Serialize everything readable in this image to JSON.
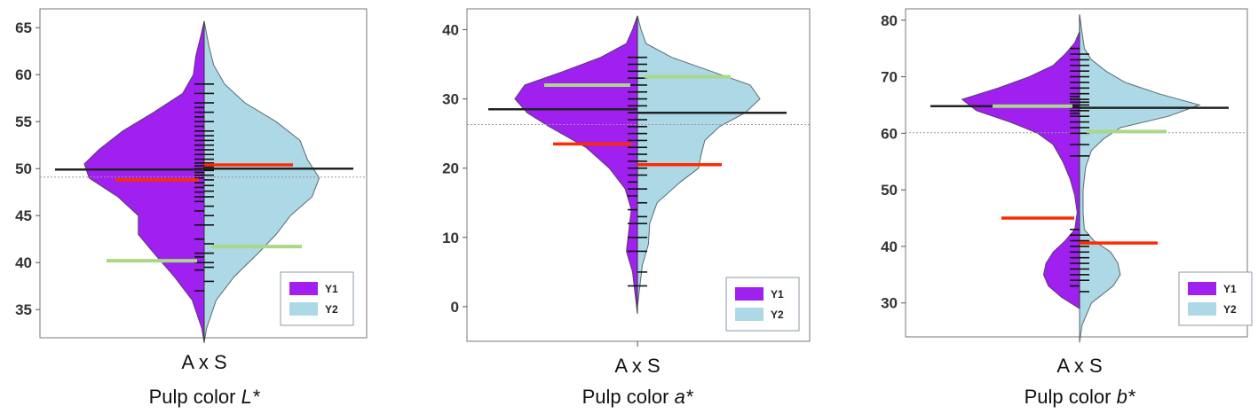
{
  "colors": {
    "y1": "#a020f0",
    "y2": "#add8e6",
    "overall_mean": "#222222",
    "red_mean": "#ff2a00",
    "green_mean": "#a8d888",
    "grand_mean": "#999999"
  },
  "chart_data": [
    {
      "type": "bean",
      "category": "A x S",
      "xlabel_prefix": "Pulp color ",
      "xlabel_var": "L*",
      "yticks": [
        35,
        40,
        45,
        50,
        55,
        60,
        65
      ],
      "ylim": [
        32,
        67
      ],
      "legend": [
        "Y1",
        "Y2"
      ],
      "legend_position": "bottom-right",
      "overall_line": {
        "y1": 49.9,
        "y2": 50.0
      },
      "grand_mean": 49.1,
      "red_lines": {
        "y1": 48.8,
        "y2": 50.4
      },
      "green_lines": {
        "y1": 40.2,
        "y2": 41.7
      },
      "density_y1": [
        [
          31.5,
          0
        ],
        [
          33,
          0.02
        ],
        [
          36,
          0.1
        ],
        [
          38.5,
          0.25
        ],
        [
          41,
          0.42
        ],
        [
          43,
          0.55
        ],
        [
          45,
          0.55
        ],
        [
          47,
          0.72
        ],
        [
          49,
          0.96
        ],
        [
          50.5,
          1.0
        ],
        [
          52,
          0.88
        ],
        [
          54,
          0.68
        ],
        [
          56,
          0.42
        ],
        [
          58,
          0.18
        ],
        [
          60,
          0.09
        ],
        [
          62,
          0.07
        ],
        [
          64,
          0.03
        ],
        [
          65.7,
          0
        ]
      ],
      "density_y2": [
        [
          31.5,
          0
        ],
        [
          33,
          0.02
        ],
        [
          36,
          0.1
        ],
        [
          38.5,
          0.25
        ],
        [
          41,
          0.45
        ],
        [
          43,
          0.6
        ],
        [
          45,
          0.72
        ],
        [
          47,
          0.9
        ],
        [
          49,
          0.96
        ],
        [
          51,
          0.86
        ],
        [
          53,
          0.8
        ],
        [
          55,
          0.6
        ],
        [
          57,
          0.34
        ],
        [
          59,
          0.17
        ],
        [
          61,
          0.08
        ],
        [
          63,
          0.04
        ],
        [
          65.7,
          0
        ]
      ],
      "obs_y1": [
        37,
        39.2,
        40,
        40.6,
        41,
        42.5,
        44,
        45.5,
        46.5,
        47,
        47.5,
        48,
        48.5,
        49,
        49.3,
        49.6,
        50,
        50.3,
        50.6,
        51,
        51.5,
        52,
        52.5,
        53,
        53.5,
        54,
        54.5,
        55,
        55.5,
        56,
        56.5,
        57,
        58,
        59
      ],
      "obs_y2": [
        38,
        39.5,
        40,
        41,
        42,
        44,
        45,
        46,
        47,
        47.6,
        48.2,
        48.8,
        49.3,
        49.8,
        50.2,
        50.6,
        51,
        51.5,
        52,
        52.5,
        53,
        53.5,
        54,
        55,
        56,
        57,
        58,
        59
      ]
    },
    {
      "type": "bean",
      "category": "A x S",
      "xlabel_prefix": "Pulp color ",
      "xlabel_var": "a*",
      "yticks": [
        0,
        10,
        20,
        30,
        40
      ],
      "ylim": [
        -5,
        43
      ],
      "legend": [
        "Y1",
        "Y2"
      ],
      "legend_position": "bottom-right",
      "overall_line": {
        "y1": 28.5,
        "y2": 28.0
      },
      "grand_mean": 26.3,
      "red_lines": {
        "y1": 23.5,
        "y2": 20.5
      },
      "green_lines": {
        "y1": 32.0,
        "y2": 33.2
      },
      "density_y1": [
        [
          -1,
          0
        ],
        [
          2,
          0.02
        ],
        [
          5,
          0.04
        ],
        [
          8,
          0.09
        ],
        [
          11,
          0.07
        ],
        [
          14,
          0.05
        ],
        [
          17,
          0.1
        ],
        [
          20,
          0.23
        ],
        [
          23,
          0.42
        ],
        [
          26,
          0.72
        ],
        [
          28,
          0.9
        ],
        [
          30,
          1.0
        ],
        [
          32,
          0.92
        ],
        [
          34,
          0.6
        ],
        [
          36,
          0.3
        ],
        [
          38,
          0.09
        ],
        [
          40,
          0.04
        ],
        [
          42,
          0
        ]
      ],
      "density_y2": [
        [
          0,
          0
        ],
        [
          3,
          0.02
        ],
        [
          6,
          0.04
        ],
        [
          9,
          0.09
        ],
        [
          12,
          0.1
        ],
        [
          15,
          0.16
        ],
        [
          18,
          0.35
        ],
        [
          20,
          0.5
        ],
        [
          22,
          0.52
        ],
        [
          24,
          0.55
        ],
        [
          26,
          0.67
        ],
        [
          28,
          0.88
        ],
        [
          30,
          1.0
        ],
        [
          32,
          0.92
        ],
        [
          34,
          0.6
        ],
        [
          36,
          0.28
        ],
        [
          38,
          0.07
        ],
        [
          40,
          0.03
        ],
        [
          42,
          0
        ]
      ],
      "obs_y1": [
        3,
        8,
        10,
        12,
        14,
        16,
        17,
        18,
        19,
        20,
        21,
        22,
        23,
        24,
        25,
        26,
        27,
        28,
        29,
        30,
        31,
        32,
        33,
        34,
        35,
        36
      ],
      "obs_y2": [
        3,
        5,
        8,
        10,
        12,
        13,
        15,
        17,
        19,
        20,
        21,
        22,
        23,
        24,
        25,
        26,
        27,
        28,
        29,
        30,
        31,
        32,
        33,
        34,
        35,
        36
      ]
    },
    {
      "type": "bean",
      "category": "A x S",
      "xlabel_prefix": "Pulp color ",
      "xlabel_var": "b*",
      "yticks": [
        30,
        40,
        50,
        60,
        70,
        80
      ],
      "ylim": [
        24,
        82
      ],
      "legend": [
        "Y1",
        "Y2"
      ],
      "legend_position": "bottom-right",
      "overall_line": {
        "y1": 64.8,
        "y2": 64.5
      },
      "grand_mean": 60.1,
      "red_lines": {
        "y1": 45.0,
        "y2": 40.6
      },
      "green_lines": {
        "y1": 64.8,
        "y2": 60.3
      },
      "density_y1": [
        [
          29,
          0
        ],
        [
          31,
          0.15
        ],
        [
          33,
          0.26
        ],
        [
          35,
          0.3
        ],
        [
          37,
          0.28
        ],
        [
          39,
          0.22
        ],
        [
          41,
          0.12
        ],
        [
          43,
          0.04
        ],
        [
          46,
          0.02
        ],
        [
          49,
          0.04
        ],
        [
          52,
          0.08
        ],
        [
          55,
          0.14
        ],
        [
          58,
          0.22
        ],
        [
          60,
          0.35
        ],
        [
          62,
          0.58
        ],
        [
          64,
          0.86
        ],
        [
          66,
          0.98
        ],
        [
          68,
          0.68
        ],
        [
          70,
          0.42
        ],
        [
          72,
          0.22
        ],
        [
          74,
          0.12
        ],
        [
          76,
          0.04
        ],
        [
          78,
          0
        ]
      ],
      "density_y2": [
        [
          23,
          0
        ],
        [
          26,
          0.02
        ],
        [
          30,
          0.1
        ],
        [
          33,
          0.28
        ],
        [
          35,
          0.34
        ],
        [
          37,
          0.32
        ],
        [
          39,
          0.26
        ],
        [
          41,
          0.12
        ],
        [
          43,
          0.04
        ],
        [
          46,
          0.03
        ],
        [
          50,
          0.03
        ],
        [
          54,
          0.05
        ],
        [
          57,
          0.1
        ],
        [
          59,
          0.2
        ],
        [
          61,
          0.34
        ],
        [
          63,
          0.74
        ],
        [
          65,
          1.0
        ],
        [
          67,
          0.66
        ],
        [
          69,
          0.38
        ],
        [
          71,
          0.22
        ],
        [
          73,
          0.1
        ],
        [
          75,
          0.04
        ],
        [
          78,
          0.02
        ],
        [
          81,
          0
        ]
      ],
      "obs_y1": [
        33,
        34,
        35,
        36,
        37,
        38,
        39,
        40,
        41,
        42,
        43,
        56,
        58,
        60,
        61,
        62,
        63,
        63.5,
        64,
        64.5,
        65,
        65.5,
        66,
        66.5,
        67,
        68,
        69,
        70,
        71,
        72,
        73,
        74,
        75
      ],
      "obs_y2": [
        32,
        34,
        35,
        36,
        37,
        38,
        39,
        40,
        41,
        42,
        56,
        58,
        60,
        61,
        62,
        63,
        64,
        64.5,
        65,
        65.5,
        66,
        67,
        68,
        69,
        70,
        71,
        72,
        73,
        74
      ]
    }
  ]
}
